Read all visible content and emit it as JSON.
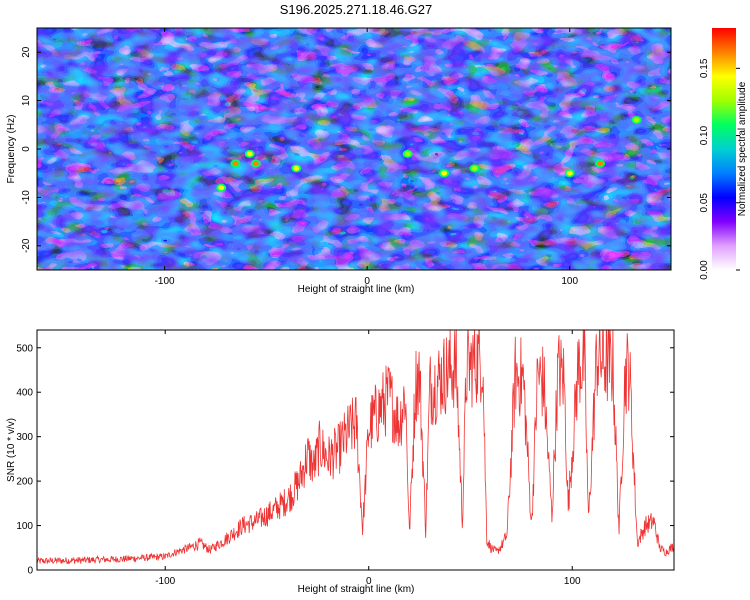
{
  "title": "S196.2025.271.18.46.G27",
  "chart_data": [
    {
      "type": "heatmap",
      "title": "S196.2025.271.18.46.G27",
      "xlabel": "Height of straight line (km)",
      "ylabel": "Frequency (Hz)",
      "xlim": [
        -163,
        150
      ],
      "ylim": [
        -25,
        25
      ],
      "x_ticks": [
        -100,
        0,
        100
      ],
      "x_tick_labels": [
        "-100",
        "0",
        "100"
      ],
      "y_ticks": [
        -20,
        -10,
        0,
        10,
        20
      ],
      "y_tick_labels": [
        "-20",
        "-10",
        "0",
        "10",
        "20"
      ],
      "colorbar": {
        "label": "Normalized spectral amplitude",
        "range": [
          0,
          0.18
        ],
        "ticks": [
          0.0,
          0.05,
          0.1,
          0.15
        ],
        "tick_labels": [
          "0.00",
          "0.05",
          "0.10",
          "0.15"
        ],
        "colors": [
          "#ffffff",
          "#e0a0ff",
          "#8000ff",
          "#0000ff",
          "#0080ff",
          "#00d0d0",
          "#00ff60",
          "#a0ff00",
          "#ffff00",
          "#ff8000",
          "#ff0000"
        ]
      },
      "hotspots": [
        {
          "x": -65,
          "y": -3,
          "amp": 0.17
        },
        {
          "x": -55,
          "y": -3,
          "amp": 0.16
        },
        {
          "x": -72,
          "y": -8,
          "amp": 0.15
        },
        {
          "x": -58,
          "y": -1,
          "amp": 0.15
        },
        {
          "x": -35,
          "y": -4,
          "amp": 0.15
        },
        {
          "x": 38,
          "y": -5,
          "amp": 0.14
        },
        {
          "x": 53,
          "y": -4,
          "amp": 0.13
        },
        {
          "x": 100,
          "y": -5,
          "amp": 0.14
        },
        {
          "x": 115,
          "y": -3,
          "amp": 0.17
        },
        {
          "x": 133,
          "y": 6,
          "amp": 0.12
        },
        {
          "x": 20,
          "y": -1,
          "amp": 0.12
        }
      ]
    },
    {
      "type": "line",
      "xlabel": "Height of straight line (km)",
      "ylabel": "SNR (10 * v/v)",
      "xlim": [
        -163,
        150
      ],
      "ylim": [
        0,
        540
      ],
      "x_ticks": [
        -100,
        0,
        100
      ],
      "x_tick_labels": [
        "-100",
        "0",
        "100"
      ],
      "y_ticks": [
        0,
        100,
        200,
        300,
        400,
        500
      ],
      "y_tick_labels": [
        "0",
        "100",
        "200",
        "300",
        "400",
        "500"
      ],
      "series": [
        {
          "name": "SNR",
          "color": "#ee3333",
          "x": [
            -163,
            -140,
            -120,
            -100,
            -95,
            -88,
            -83,
            -78,
            -70,
            -62,
            -55,
            -48,
            -42,
            -38,
            -34,
            -30,
            -27,
            -24,
            -20,
            -15,
            -10,
            -6,
            -3,
            0,
            5,
            10,
            15,
            18,
            20,
            23,
            25,
            28,
            30,
            33,
            38,
            43,
            46,
            48,
            52,
            56,
            58,
            60,
            63,
            66,
            68,
            72,
            76,
            80,
            83,
            86,
            90,
            93,
            96,
            98,
            103,
            106,
            108,
            112,
            116,
            120,
            123,
            126,
            128,
            132,
            136,
            140,
            143,
            146,
            150
          ],
          "values": [
            20,
            22,
            25,
            30,
            40,
            50,
            60,
            45,
            70,
            100,
            110,
            130,
            150,
            170,
            200,
            260,
            230,
            280,
            250,
            270,
            310,
            330,
            90,
            320,
            360,
            390,
            330,
            400,
            80,
            420,
            440,
            90,
            410,
            420,
            445,
            460,
            110,
            450,
            470,
            480,
            70,
            50,
            40,
            60,
            80,
            440,
            430,
            100,
            440,
            420,
            120,
            450,
            430,
            140,
            460,
            470,
            110,
            480,
            470,
            460,
            90,
            440,
            460,
            60,
            100,
            110,
            50,
            40,
            55
          ]
        }
      ]
    }
  ]
}
